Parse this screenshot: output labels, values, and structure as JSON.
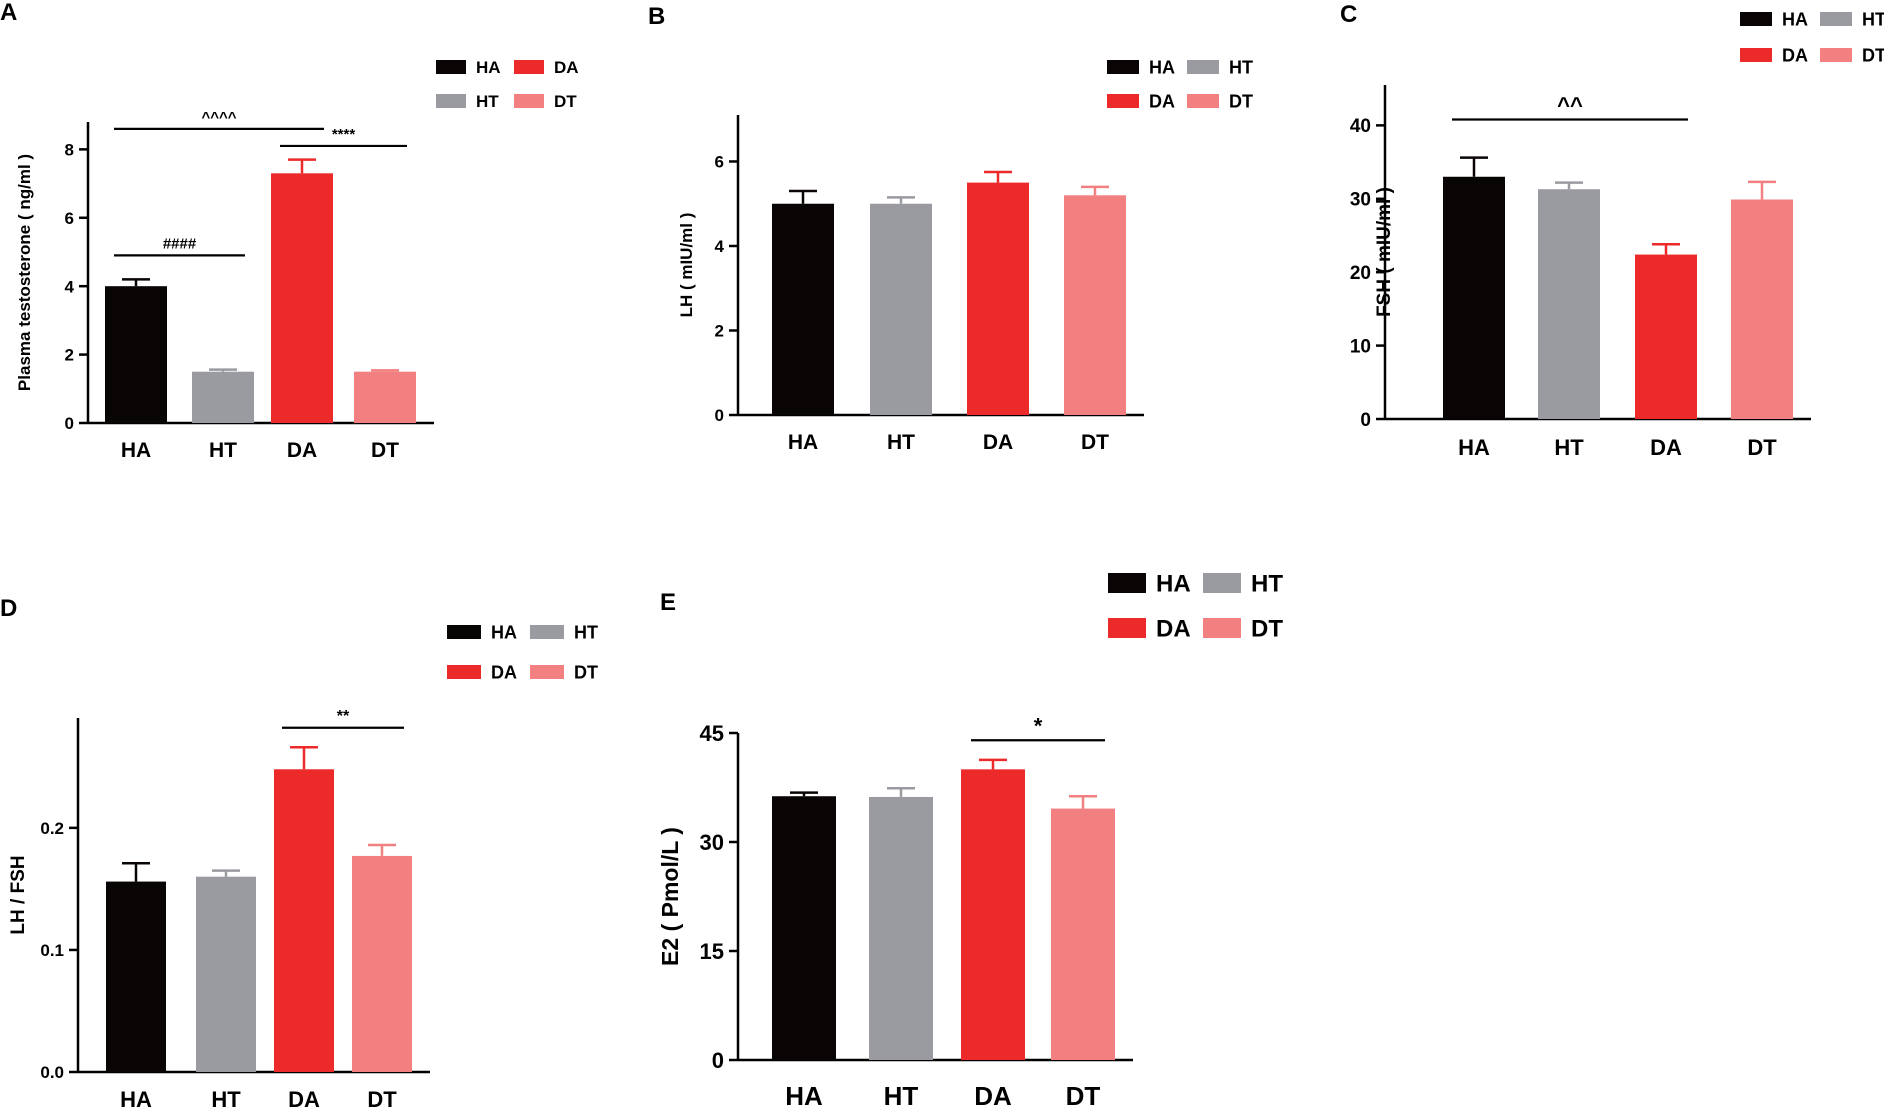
{
  "colors": {
    "HA": "#0a0505",
    "HT": "#999ba0",
    "DA": "#ec2a2a",
    "DT": "#f38080"
  },
  "chart_data": [
    {
      "panel": "A",
      "type": "bar",
      "categories": [
        "HA",
        "HT",
        "DA",
        "DT"
      ],
      "values": [
        4.0,
        1.5,
        7.3,
        1.5
      ],
      "errors": [
        0.2,
        0.06,
        0.4,
        0.04
      ],
      "ylabel": "Plasma testosterone ( ng/ml )",
      "ylim": [
        0,
        8.8
      ],
      "yticks": [
        0,
        2,
        4,
        6,
        8
      ],
      "legend": [
        [
          "HA",
          "DA"
        ],
        [
          "HT",
          "DT"
        ]
      ],
      "significance": [
        {
          "from": 0,
          "to": 2,
          "label": "^^^^",
          "y": 8.6
        },
        {
          "from": 2,
          "to": 3,
          "label": "****",
          "y": 8.1
        },
        {
          "from": 0,
          "to": 1,
          "label": "####",
          "y": 4.9
        }
      ]
    },
    {
      "panel": "B",
      "type": "bar",
      "categories": [
        "HA",
        "HT",
        "DA",
        "DT"
      ],
      "values": [
        5.0,
        5.0,
        5.5,
        5.2
      ],
      "errors": [
        0.3,
        0.15,
        0.25,
        0.2
      ],
      "ylabel": "LH ( mIU/ml )",
      "ylim": [
        0,
        7.1
      ],
      "yticks": [
        0,
        2,
        4,
        6
      ],
      "legend": [
        [
          "HA",
          "HT"
        ],
        [
          "DA",
          "DT"
        ]
      ],
      "significance": []
    },
    {
      "panel": "C",
      "type": "bar",
      "categories": [
        "HA",
        "HT",
        "DA",
        "DT"
      ],
      "values": [
        33.0,
        31.3,
        22.4,
        29.9
      ],
      "errors": [
        2.6,
        0.9,
        1.4,
        2.4
      ],
      "ylabel": "FSH ( mIU/ml )",
      "ylim": [
        0,
        45.5
      ],
      "yticks": [
        0,
        10,
        20,
        30,
        40
      ],
      "legend": [
        [
          "HA",
          "HT"
        ],
        [
          "DA",
          "DT"
        ]
      ],
      "significance": [
        {
          "from": 0,
          "to": 2,
          "label": "^^",
          "y": 40.8
        }
      ]
    },
    {
      "panel": "D",
      "type": "bar",
      "categories": [
        "HA",
        "HT",
        "DA",
        "DT"
      ],
      "values": [
        0.156,
        0.16,
        0.248,
        0.177
      ],
      "errors": [
        0.015,
        0.005,
        0.018,
        0.009
      ],
      "ylabel": "LH / FSH",
      "ylim": [
        0,
        0.29
      ],
      "yticks": [
        0.0,
        0.1,
        0.2
      ],
      "tick_format": "0.0",
      "legend": [
        [
          "HA",
          "HT"
        ],
        [
          "DA",
          "DT"
        ]
      ],
      "significance": [
        {
          "from": 2,
          "to": 3,
          "label": "**",
          "y": 0.282
        }
      ]
    },
    {
      "panel": "E",
      "type": "bar",
      "categories": [
        "HA",
        "HT",
        "DA",
        "DT"
      ],
      "values": [
        36.3,
        36.2,
        40.0,
        34.6
      ],
      "errors": [
        0.5,
        1.2,
        1.3,
        1.7
      ],
      "ylabel": "E2 ( Pmol/L )",
      "ylim": [
        0,
        45
      ],
      "yticks": [
        0,
        15,
        30,
        45
      ],
      "legend": [
        [
          "HA",
          "HT"
        ],
        [
          "DA",
          "DT"
        ]
      ],
      "significance": [
        {
          "from": 2,
          "to": 3,
          "label": "*",
          "y": 44.0
        }
      ]
    }
  ]
}
